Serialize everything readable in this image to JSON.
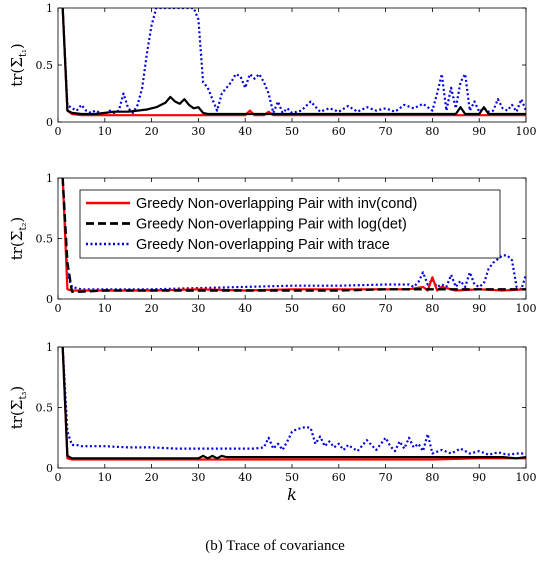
{
  "caption": "(b) Trace of covariance",
  "colors": {
    "inv_cond": "#ff0000",
    "logdet": "#000000",
    "trace": "#0000dd"
  },
  "chart_data": [
    {
      "type": "line",
      "ylabel": "tr(Σ_{t1})",
      "ylabel_main": "tr(Σ",
      "ylabel_sub": "t₁",
      "ylabel_close": ")",
      "xlabel": "",
      "xlim": [
        0,
        100
      ],
      "ylim": [
        0,
        1
      ],
      "xticks": [
        "0",
        "10",
        "20",
        "30",
        "40",
        "50",
        "60",
        "70",
        "80",
        "90",
        "100"
      ],
      "yticks": [
        "0",
        "0.5",
        "1"
      ],
      "grid": false,
      "series": [
        {
          "name": "Greedy Non-overlapping Pair with inv(cond)",
          "style": "solid-red",
          "x": [
            1,
            2,
            3,
            5,
            8,
            10,
            15,
            20,
            25,
            30,
            35,
            38,
            40,
            41,
            42,
            44,
            45,
            46,
            50,
            60,
            70,
            80,
            85,
            87,
            88,
            90,
            91,
            92,
            95,
            100
          ],
          "y": [
            1,
            0.1,
            0.07,
            0.06,
            0.06,
            0.06,
            0.06,
            0.06,
            0.06,
            0.06,
            0.06,
            0.06,
            0.06,
            0.1,
            0.06,
            0.06,
            0.09,
            0.06,
            0.06,
            0.06,
            0.06,
            0.06,
            0.06,
            0.06,
            0.06,
            0.06,
            0.06,
            0.06,
            0.06,
            0.06
          ]
        },
        {
          "name": "Greedy Non-overlapping Pair with log(det)",
          "style": "solid-black",
          "x": [
            1,
            2,
            3,
            5,
            8,
            10,
            12,
            15,
            17,
            19,
            20,
            21,
            22,
            23,
            24,
            25,
            26,
            27,
            28,
            29,
            30,
            31,
            32,
            35,
            40,
            50,
            60,
            70,
            80,
            85,
            86,
            87,
            88,
            90,
            91,
            92,
            95,
            100
          ],
          "y": [
            1,
            0.1,
            0.08,
            0.07,
            0.07,
            0.08,
            0.09,
            0.09,
            0.1,
            0.11,
            0.12,
            0.13,
            0.15,
            0.17,
            0.22,
            0.18,
            0.16,
            0.2,
            0.15,
            0.12,
            0.13,
            0.08,
            0.07,
            0.07,
            0.07,
            0.07,
            0.07,
            0.07,
            0.07,
            0.07,
            0.13,
            0.07,
            0.07,
            0.07,
            0.13,
            0.07,
            0.07,
            0.07
          ]
        },
        {
          "name": "Greedy Non-overlapping Pair with trace",
          "style": "dotted-blue",
          "x": [
            1,
            2,
            3,
            4,
            5,
            6,
            7,
            8,
            9,
            10,
            11,
            12,
            13,
            14,
            15,
            16,
            17,
            18,
            19,
            20,
            21,
            22,
            23,
            24,
            25,
            26,
            27,
            28,
            29,
            30,
            31,
            32,
            33,
            34,
            35,
            36,
            37,
            38,
            39,
            40,
            41,
            42,
            43,
            44,
            45,
            46,
            47,
            48,
            49,
            50,
            52,
            54,
            56,
            58,
            60,
            62,
            64,
            66,
            68,
            70,
            72,
            74,
            76,
            78,
            80,
            81,
            82,
            83,
            84,
            85,
            86,
            87,
            88,
            89,
            90,
            91,
            92,
            93,
            94,
            95,
            96,
            97,
            98,
            99,
            100
          ],
          "y": [
            1,
            0.15,
            0.12,
            0.1,
            0.15,
            0.1,
            0.08,
            0.1,
            0.08,
            0.07,
            0.1,
            0.08,
            0.1,
            0.25,
            0.12,
            0.08,
            0.15,
            0.3,
            0.6,
            0.85,
            1,
            1,
            1,
            1,
            1,
            1,
            1,
            1,
            1,
            0.9,
            0.35,
            0.3,
            0.2,
            0.1,
            0.25,
            0.3,
            0.35,
            0.42,
            0.4,
            0.3,
            0.42,
            0.38,
            0.42,
            0.35,
            0.25,
            0.08,
            0.18,
            0.08,
            0.12,
            0.08,
            0.1,
            0.18,
            0.09,
            0.12,
            0.09,
            0.14,
            0.09,
            0.13,
            0.1,
            0.12,
            0.09,
            0.15,
            0.12,
            0.16,
            0.1,
            0.25,
            0.42,
            0.1,
            0.3,
            0.12,
            0.35,
            0.42,
            0.1,
            0.18,
            0.09,
            0.12,
            0.09,
            0.1,
            0.2,
            0.12,
            0.1,
            0.15,
            0.09,
            0.2,
            0.1
          ]
        }
      ]
    },
    {
      "type": "line",
      "ylabel": "tr(Σ_{t2})",
      "ylabel_main": "tr(Σ",
      "ylabel_sub": "t₂",
      "ylabel_close": ")",
      "xlabel": "",
      "xlim": [
        0,
        100
      ],
      "ylim": [
        0,
        1
      ],
      "xticks": [
        "0",
        "10",
        "20",
        "30",
        "40",
        "50",
        "60",
        "70",
        "80",
        "90",
        "100"
      ],
      "yticks": [
        "0",
        "0.5",
        "1"
      ],
      "grid": false,
      "legend": "top-right",
      "series": [
        {
          "name": "Greedy Non-overlapping Pair with inv(cond)",
          "style": "solid-red",
          "x": [
            1,
            2,
            3,
            5,
            10,
            20,
            30,
            40,
            50,
            60,
            70,
            75,
            78,
            79,
            80,
            81,
            82,
            85,
            90,
            95,
            100
          ],
          "y": [
            1,
            0.08,
            0.07,
            0.07,
            0.07,
            0.07,
            0.08,
            0.07,
            0.08,
            0.08,
            0.08,
            0.08,
            0.1,
            0.07,
            0.18,
            0.07,
            0.1,
            0.07,
            0.08,
            0.07,
            0.08
          ]
        },
        {
          "name": "Greedy Non-overlapping Pair with log(det)",
          "style": "dashed-black",
          "x": [
            1,
            2,
            3,
            5,
            10,
            20,
            30,
            40,
            50,
            60,
            70,
            80,
            90,
            100
          ],
          "y": [
            1,
            0.3,
            0.06,
            0.06,
            0.07,
            0.07,
            0.07,
            0.07,
            0.07,
            0.07,
            0.08,
            0.08,
            0.08,
            0.08
          ]
        },
        {
          "name": "Greedy Non-overlapping Pair with trace",
          "style": "dotted-blue",
          "x": [
            1,
            2,
            3,
            4,
            5,
            10,
            20,
            30,
            40,
            50,
            60,
            70,
            75,
            76,
            77,
            78,
            79,
            80,
            81,
            82,
            83,
            84,
            85,
            86,
            87,
            88,
            89,
            90,
            91,
            92,
            93,
            94,
            95,
            96,
            97,
            98,
            99,
            100
          ],
          "y": [
            1,
            0.2,
            0.1,
            0.09,
            0.08,
            0.08,
            0.08,
            0.09,
            0.1,
            0.11,
            0.11,
            0.12,
            0.12,
            0.1,
            0.14,
            0.22,
            0.12,
            0.16,
            0.1,
            0.12,
            0.1,
            0.2,
            0.1,
            0.15,
            0.1,
            0.22,
            0.12,
            0.1,
            0.13,
            0.25,
            0.3,
            0.33,
            0.36,
            0.36,
            0.32,
            0.1,
            0.08,
            0.2
          ]
        }
      ]
    },
    {
      "type": "line",
      "ylabel": "tr(Σ_{t3})",
      "ylabel_main": "tr(Σ",
      "ylabel_sub": "t₃",
      "ylabel_close": ")",
      "xlabel": "k",
      "xlim": [
        0,
        100
      ],
      "ylim": [
        0,
        1
      ],
      "xticks": [
        "0",
        "10",
        "20",
        "30",
        "40",
        "50",
        "60",
        "70",
        "80",
        "90",
        "100"
      ],
      "yticks": [
        "0",
        "0.5",
        "1"
      ],
      "grid": false,
      "series": [
        {
          "name": "Greedy Non-overlapping Pair with inv(cond)",
          "style": "solid-red",
          "x": [
            1,
            2,
            3,
            5,
            10,
            20,
            30,
            40,
            50,
            60,
            70,
            80,
            90,
            100
          ],
          "y": [
            1,
            0.08,
            0.07,
            0.07,
            0.07,
            0.07,
            0.07,
            0.07,
            0.07,
            0.07,
            0.07,
            0.07,
            0.08,
            0.08
          ]
        },
        {
          "name": "Greedy Non-overlapping Pair with log(det)",
          "style": "solid-black",
          "x": [
            1,
            2,
            3,
            5,
            10,
            20,
            30,
            31,
            32,
            33,
            34,
            35,
            36,
            40,
            50,
            60,
            70,
            80,
            90,
            95,
            98,
            100
          ],
          "y": [
            1,
            0.1,
            0.08,
            0.08,
            0.08,
            0.08,
            0.08,
            0.1,
            0.08,
            0.1,
            0.08,
            0.1,
            0.09,
            0.09,
            0.09,
            0.09,
            0.09,
            0.09,
            0.09,
            0.09,
            0.08,
            0.09
          ]
        },
        {
          "name": "Greedy Non-overlapping Pair with trace",
          "style": "dotted-blue",
          "x": [
            1,
            2,
            3,
            4,
            5,
            10,
            15,
            20,
            25,
            30,
            35,
            40,
            42,
            44,
            45,
            46,
            47,
            48,
            49,
            50,
            51,
            52,
            53,
            54,
            55,
            56,
            57,
            58,
            59,
            60,
            61,
            62,
            64,
            66,
            68,
            70,
            71,
            72,
            73,
            74,
            75,
            76,
            77,
            78,
            79,
            80,
            82,
            84,
            86,
            88,
            90,
            92,
            94,
            96,
            98,
            100
          ],
          "y": [
            1,
            0.3,
            0.19,
            0.19,
            0.18,
            0.18,
            0.17,
            0.17,
            0.16,
            0.16,
            0.16,
            0.16,
            0.16,
            0.17,
            0.25,
            0.16,
            0.2,
            0.15,
            0.22,
            0.3,
            0.32,
            0.33,
            0.34,
            0.33,
            0.2,
            0.26,
            0.18,
            0.22,
            0.17,
            0.2,
            0.15,
            0.19,
            0.14,
            0.23,
            0.15,
            0.25,
            0.18,
            0.14,
            0.22,
            0.16,
            0.25,
            0.17,
            0.2,
            0.14,
            0.28,
            0.12,
            0.15,
            0.12,
            0.16,
            0.12,
            0.14,
            0.11,
            0.13,
            0.11,
            0.12,
            0.12
          ]
        }
      ]
    }
  ]
}
